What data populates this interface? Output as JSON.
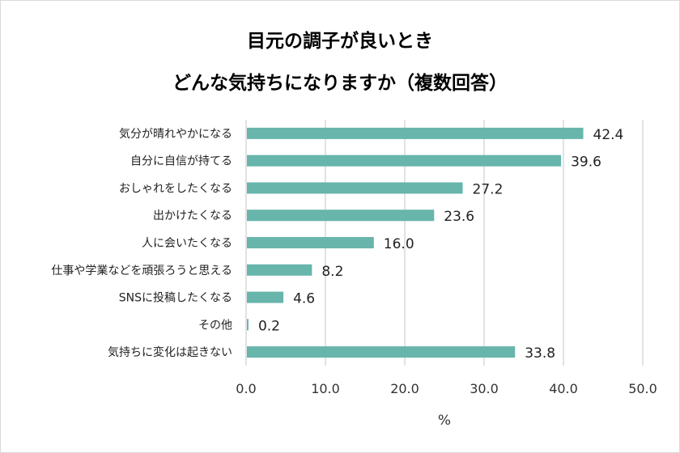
{
  "chart_data": {
    "type": "bar",
    "orientation": "horizontal",
    "title": [
      "目元の調子が良いとき",
      "どんな気持ちになりますか（複数回答）"
    ],
    "categories": [
      "気分が晴れやかになる",
      "自分に自信が持てる",
      "おしゃれをしたくなる",
      "出かけたくなる",
      "人に会いたくなる",
      "仕事や学業などを頑張ろうと思える",
      "SNSに投稿したくなる",
      "その他",
      "気持ちに変化は起きない"
    ],
    "values": [
      42.4,
      39.6,
      27.2,
      23.6,
      16.0,
      8.2,
      4.6,
      0.2,
      33.8
    ],
    "value_labels": [
      "42.4",
      "39.6",
      "27.2",
      "23.6",
      "16.0",
      "8.2",
      "4.6",
      "0.2",
      "33.8"
    ],
    "xlabel": "%",
    "ylabel": "",
    "xlim": [
      0,
      50
    ],
    "x_ticks": [
      "0.0",
      "10.0",
      "20.0",
      "30.0",
      "40.0",
      "50.0"
    ],
    "grid": "vertical",
    "legend": "none",
    "bar_color": "#68b5ac"
  }
}
